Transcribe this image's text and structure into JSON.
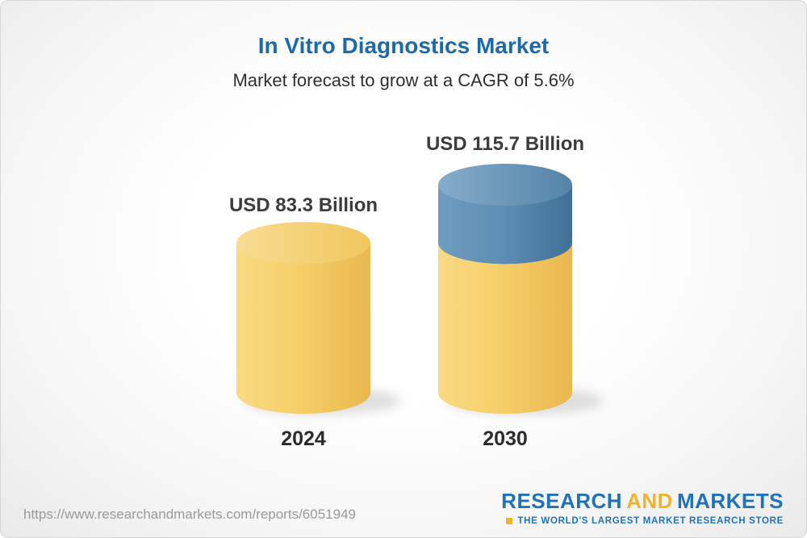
{
  "header": {
    "title": "In Vitro Diagnostics Market",
    "subtitle": "Market forecast to grow at a CAGR of 5.6%"
  },
  "chart_data": {
    "type": "bar",
    "variant": "3d-cylinder-columns",
    "title": "In Vitro Diagnostics Market",
    "subtitle": "Market forecast to grow at a CAGR of 5.6%",
    "cagr_percent": 5.6,
    "unit": "USD Billion",
    "categories": [
      "2024",
      "2030"
    ],
    "values": [
      83.3,
      115.7
    ],
    "value_labels": [
      "USD 83.3 Billion",
      "USD 115.7 Billion"
    ],
    "ylim": [
      0,
      120
    ],
    "grid": false,
    "legend_position": "none",
    "colors": {
      "base_segment": "#f5cf6a",
      "growth_segment": "#5d8db2"
    },
    "notes": "2030 cylinder shows the 2024 base in yellow plus the forecast growth segment in blue on top"
  },
  "footer": {
    "report_url": "https://www.researchandmarkets.com/reports/6051949",
    "logo": {
      "word1": "RESEARCH",
      "word2": "AND",
      "word3": "MARKETS",
      "tagline": "THE WORLD'S LARGEST MARKET RESEARCH STORE"
    }
  }
}
